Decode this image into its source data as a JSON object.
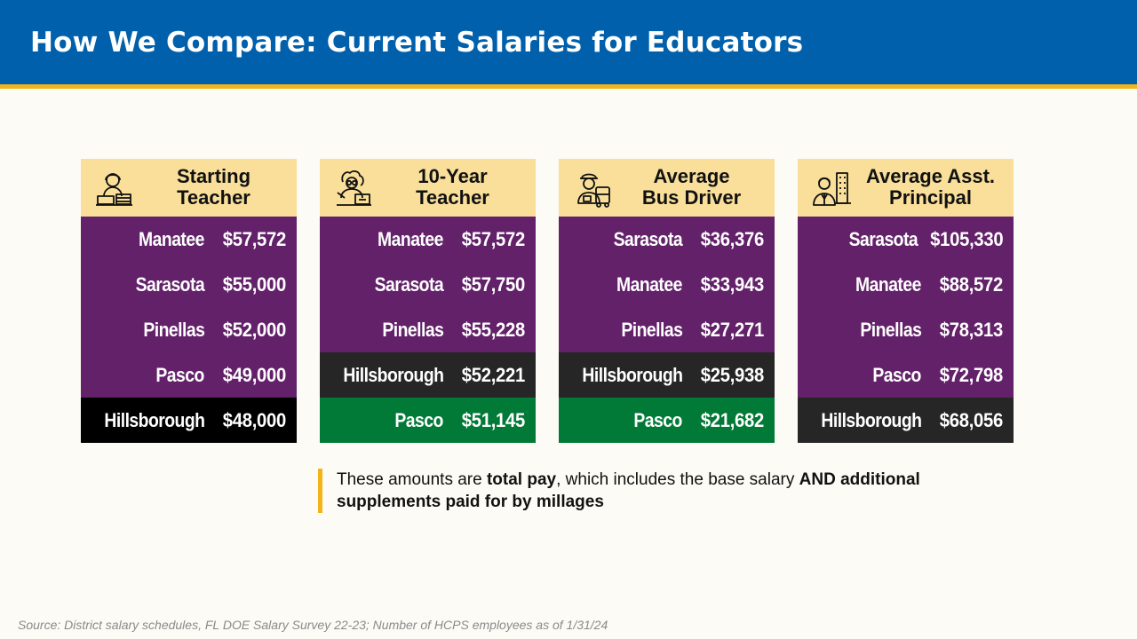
{
  "title": "How We Compare: Current Salaries for Educators",
  "colors": {
    "header": "#0060AC",
    "stripe": "#F2B418",
    "card_header": "#F9DF9A",
    "purple": "#63216A",
    "dark": "#262626",
    "black": "#000000",
    "green": "#007A36"
  },
  "cards": [
    {
      "title_line1": "Starting",
      "title_line2": "Teacher",
      "icon": "teacher-at-desk-icon",
      "rows": [
        {
          "county": "Manatee",
          "amount": "$57,572",
          "color": "#63216A"
        },
        {
          "county": "Sarasota",
          "amount": "$55,000",
          "color": "#63216A"
        },
        {
          "county": "Pinellas",
          "amount": "$52,000",
          "color": "#63216A"
        },
        {
          "county": "Pasco",
          "amount": "$49,000",
          "color": "#63216A"
        },
        {
          "county": "Hillsborough",
          "amount": "$48,000",
          "color": "#000000"
        }
      ]
    },
    {
      "title_line1": "10-Year",
      "title_line2": "Teacher",
      "icon": "experienced-teacher-icon",
      "rows": [
        {
          "county": "Manatee",
          "amount": "$57,572",
          "color": "#63216A"
        },
        {
          "county": "Sarasota",
          "amount": "$57,750",
          "color": "#63216A"
        },
        {
          "county": "Pinellas",
          "amount": "$55,228",
          "color": "#63216A"
        },
        {
          "county": "Hillsborough",
          "amount": "$52,221",
          "color": "#262626"
        },
        {
          "county": "Pasco",
          "amount": "$51,145",
          "color": "#007A36"
        }
      ]
    },
    {
      "title_line1": "Average",
      "title_line2": "Bus Driver",
      "icon": "bus-driver-icon",
      "rows": [
        {
          "county": "Sarasota",
          "amount": "$36,376",
          "color": "#63216A"
        },
        {
          "county": "Manatee",
          "amount": "$33,943",
          "color": "#63216A"
        },
        {
          "county": "Pinellas",
          "amount": "$27,271",
          "color": "#63216A"
        },
        {
          "county": "Hillsborough",
          "amount": "$25,938",
          "color": "#262626"
        },
        {
          "county": "Pasco",
          "amount": "$21,682",
          "color": "#007A36"
        }
      ]
    },
    {
      "title_line1": "Average Asst.",
      "title_line2": "Principal",
      "icon": "principal-building-icon",
      "rows": [
        {
          "county": "Sarasota",
          "amount": "$105,330",
          "color": "#63216A"
        },
        {
          "county": "Manatee",
          "amount": "$88,572",
          "color": "#63216A"
        },
        {
          "county": "Pinellas",
          "amount": "$78,313",
          "color": "#63216A"
        },
        {
          "county": "Pasco",
          "amount": "$72,798",
          "color": "#63216A"
        },
        {
          "county": "Hillsborough",
          "amount": "$68,056",
          "color": "#262626"
        }
      ]
    }
  ],
  "note": {
    "part1": "These amounts are ",
    "bold1": "total pay",
    "part2": ", which includes the base salary ",
    "bold2": "AND additional supplements paid for by millages"
  },
  "source": "Source: District salary schedules, FL DOE Salary Survey 22-23; Number of HCPS employees as of 1/31/24"
}
